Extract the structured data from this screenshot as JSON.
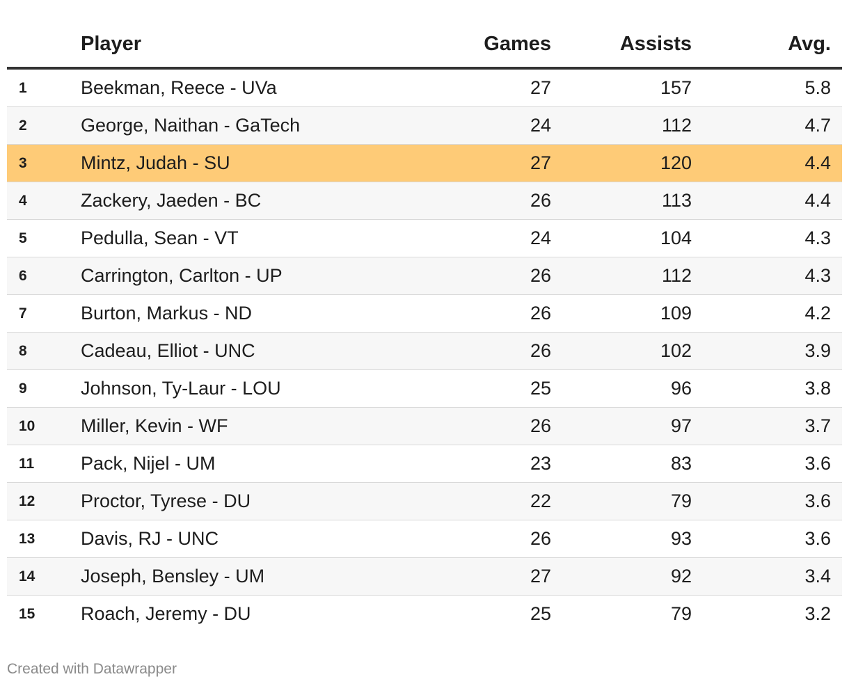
{
  "chart_data": {
    "type": "table",
    "columns": [
      "",
      "Player",
      "Games",
      "Assists",
      "Avg."
    ],
    "highlighted_rank": "3",
    "highlight_color": "#fecb77",
    "rows": [
      {
        "rank": "1",
        "player": "Beekman, Reece - UVa",
        "games": "27",
        "assists": "157",
        "avg": "5.8"
      },
      {
        "rank": "2",
        "player": "George, Naithan - GaTech",
        "games": "24",
        "assists": "112",
        "avg": "4.7"
      },
      {
        "rank": "3",
        "player": "Mintz, Judah - SU",
        "games": "27",
        "assists": "120",
        "avg": "4.4"
      },
      {
        "rank": "4",
        "player": "Zackery, Jaeden - BC",
        "games": "26",
        "assists": "113",
        "avg": "4.4"
      },
      {
        "rank": "5",
        "player": "Pedulla, Sean - VT",
        "games": "24",
        "assists": "104",
        "avg": "4.3"
      },
      {
        "rank": "6",
        "player": "Carrington, Carlton - UP",
        "games": "26",
        "assists": "112",
        "avg": "4.3"
      },
      {
        "rank": "7",
        "player": "Burton, Markus - ND",
        "games": "26",
        "assists": "109",
        "avg": "4.2"
      },
      {
        "rank": "8",
        "player": "Cadeau, Elliot - UNC",
        "games": "26",
        "assists": "102",
        "avg": "3.9"
      },
      {
        "rank": "9",
        "player": "Johnson, Ty-Laur - LOU",
        "games": "25",
        "assists": "96",
        "avg": "3.8"
      },
      {
        "rank": "10",
        "player": "Miller, Kevin - WF",
        "games": "26",
        "assists": "97",
        "avg": "3.7"
      },
      {
        "rank": "11",
        "player": "Pack, Nijel - UM",
        "games": "23",
        "assists": "83",
        "avg": "3.6"
      },
      {
        "rank": "12",
        "player": "Proctor, Tyrese - DU",
        "games": "22",
        "assists": "79",
        "avg": "3.6"
      },
      {
        "rank": "13",
        "player": "Davis, RJ - UNC",
        "games": "26",
        "assists": "93",
        "avg": "3.6"
      },
      {
        "rank": "14",
        "player": "Joseph, Bensley - UM",
        "games": "27",
        "assists": "92",
        "avg": "3.4"
      },
      {
        "rank": "15",
        "player": "Roach, Jeremy - DU",
        "games": "25",
        "assists": "79",
        "avg": "3.2"
      }
    ]
  },
  "footer": {
    "credit": "Created with Datawrapper"
  }
}
